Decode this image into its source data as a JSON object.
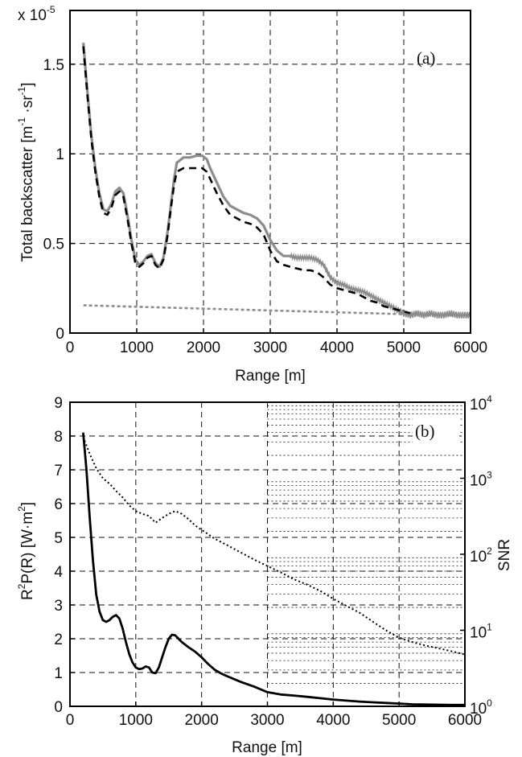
{
  "chart_data": [
    {
      "type": "line",
      "panel_label": "(a)",
      "exponent_label": "x 10",
      "exponent_power": "-5",
      "xlabel": "Range [m]",
      "ylabel": "Total backscatter [m",
      "xlim": [
        0,
        6000
      ],
      "ylim": [
        0,
        1.8
      ],
      "x_ticks": [
        "0",
        "1000",
        "2000",
        "3000",
        "4000",
        "5000",
        "6000"
      ],
      "y_ticks": [
        "0",
        "0.5",
        "1",
        "1.5"
      ],
      "grid": true,
      "series": [
        {
          "style": "solid-gray",
          "color": "#8c8c8c",
          "x": [
            200,
            260,
            320,
            380,
            440,
            500,
            560,
            620,
            680,
            740,
            800,
            860,
            920,
            980,
            1040,
            1100,
            1160,
            1220,
            1280,
            1340,
            1400,
            1460,
            1520,
            1560,
            1600,
            1700,
            1800,
            1900,
            1980,
            2050,
            2100,
            2200,
            2300,
            2400,
            2500,
            2600,
            2700,
            2800,
            2900,
            3000,
            3100,
            3200,
            3300,
            3400,
            3500,
            3600,
            3700,
            3800,
            3900,
            4000,
            4100,
            4200,
            4300,
            4400,
            4500,
            4600,
            4700,
            4800,
            4900,
            5000,
            5100,
            5200,
            5300,
            5400,
            5500,
            5600,
            5700,
            5800,
            5900,
            6000
          ],
          "values": [
            1.62,
            1.35,
            1.1,
            0.92,
            0.78,
            0.69,
            0.68,
            0.72,
            0.79,
            0.81,
            0.78,
            0.66,
            0.52,
            0.41,
            0.38,
            0.4,
            0.43,
            0.44,
            0.39,
            0.37,
            0.42,
            0.56,
            0.74,
            0.86,
            0.95,
            0.98,
            0.98,
            0.99,
            0.99,
            0.97,
            0.92,
            0.84,
            0.76,
            0.71,
            0.69,
            0.67,
            0.66,
            0.64,
            0.6,
            0.52,
            0.46,
            0.43,
            0.43,
            0.42,
            0.42,
            0.42,
            0.41,
            0.38,
            0.31,
            0.28,
            0.27,
            0.25,
            0.24,
            0.23,
            0.21,
            0.19,
            0.17,
            0.15,
            0.13,
            0.11,
            0.1,
            0.11,
            0.1,
            0.11,
            0.1,
            0.1,
            0.11,
            0.1,
            0.1,
            0.1
          ]
        },
        {
          "style": "dashed-black",
          "color": "#000000",
          "x": [
            200,
            260,
            320,
            380,
            440,
            500,
            560,
            620,
            680,
            740,
            800,
            860,
            920,
            980,
            1040,
            1100,
            1160,
            1220,
            1280,
            1340,
            1400,
            1460,
            1520,
            1560,
            1600,
            1700,
            1800,
            1900,
            1980,
            2050,
            2100,
            2200,
            2300,
            2400,
            2500,
            2600,
            2700,
            2800,
            2900,
            3000,
            3100,
            3200,
            3300,
            3400,
            3500,
            3600,
            3700,
            3800,
            3900,
            4000,
            4100,
            4200,
            4300,
            4400,
            4500,
            4600,
            4700,
            4800,
            4900,
            5000,
            5100
          ],
          "values": [
            1.6,
            1.33,
            1.08,
            0.9,
            0.76,
            0.67,
            0.66,
            0.7,
            0.77,
            0.79,
            0.76,
            0.64,
            0.5,
            0.39,
            0.37,
            0.39,
            0.42,
            0.43,
            0.38,
            0.36,
            0.41,
            0.54,
            0.72,
            0.83,
            0.9,
            0.92,
            0.92,
            0.92,
            0.92,
            0.9,
            0.86,
            0.78,
            0.71,
            0.66,
            0.64,
            0.62,
            0.61,
            0.59,
            0.55,
            0.46,
            0.4,
            0.38,
            0.37,
            0.36,
            0.35,
            0.35,
            0.34,
            0.31,
            0.27,
            0.25,
            0.24,
            0.23,
            0.22,
            0.2,
            0.18,
            0.17,
            0.15,
            0.14,
            0.13,
            0.12,
            0.11
          ]
        },
        {
          "style": "dotted-gray",
          "color": "#8c8c8c",
          "x": [
            200,
            6000
          ],
          "values": [
            0.155,
            0.095
          ]
        }
      ]
    },
    {
      "type": "line",
      "panel_label": "(b)",
      "xlabel": "Range [m]",
      "ylabel": "R",
      "ylabel_right": "SNR",
      "xlim": [
        0,
        6000
      ],
      "ylim": [
        0,
        9
      ],
      "ylim_right": [
        1,
        10000
      ],
      "right_scale": "log",
      "x_ticks": [
        "0",
        "1000",
        "2000",
        "3000",
        "4000",
        "5000",
        "6000"
      ],
      "y_ticks": [
        "0",
        "1",
        "2",
        "3",
        "4",
        "5",
        "6",
        "7",
        "8",
        "9"
      ],
      "y_ticks_right": [
        {
          "base": "10",
          "exp": "0"
        },
        {
          "base": "10",
          "exp": "1"
        },
        {
          "base": "10",
          "exp": "2"
        },
        {
          "base": "10",
          "exp": "3"
        },
        {
          "base": "10",
          "exp": "4"
        }
      ],
      "grid": true,
      "series": [
        {
          "style": "solid-black",
          "axis": "left",
          "x": [
            200,
            250,
            300,
            350,
            400,
            450,
            500,
            550,
            600,
            650,
            700,
            750,
            800,
            850,
            900,
            950,
            1000,
            1050,
            1100,
            1150,
            1200,
            1250,
            1300,
            1350,
            1400,
            1450,
            1500,
            1550,
            1600,
            1650,
            1700,
            1800,
            1900,
            2000,
            2100,
            2200,
            2300,
            2400,
            2500,
            2600,
            2700,
            2800,
            2900,
            3000,
            3200,
            3400,
            3600,
            3800,
            4000,
            4200,
            4400,
            4600,
            4800,
            5000,
            5200,
            5500,
            5800,
            6000
          ],
          "values": [
            8.1,
            7.0,
            5.6,
            4.3,
            3.3,
            2.8,
            2.55,
            2.5,
            2.55,
            2.65,
            2.7,
            2.6,
            2.3,
            1.9,
            1.55,
            1.3,
            1.15,
            1.1,
            1.12,
            1.18,
            1.15,
            1.0,
            0.98,
            1.15,
            1.45,
            1.75,
            2.0,
            2.12,
            2.1,
            2.0,
            1.9,
            1.75,
            1.62,
            1.45,
            1.25,
            1.08,
            0.97,
            0.88,
            0.8,
            0.72,
            0.65,
            0.58,
            0.5,
            0.42,
            0.35,
            0.32,
            0.28,
            0.24,
            0.2,
            0.17,
            0.14,
            0.12,
            0.1,
            0.08,
            0.06,
            0.05,
            0.04,
            0.04
          ]
        },
        {
          "style": "dotted-black",
          "axis": "right",
          "x": [
            200,
            300,
            400,
            500,
            600,
            700,
            800,
            900,
            1000,
            1100,
            1200,
            1300,
            1400,
            1500,
            1600,
            1700,
            1800,
            1900,
            2000,
            2200,
            2400,
            2600,
            2800,
            3000,
            3200,
            3400,
            3600,
            3800,
            4000,
            4200,
            4400,
            4600,
            4800,
            5000,
            5200,
            5400,
            5600,
            5800,
            6000
          ],
          "values": [
            3500,
            2100,
            1350,
            1000,
            850,
            680,
            560,
            440,
            370,
            340,
            320,
            260,
            300,
            340,
            370,
            340,
            290,
            240,
            210,
            160,
            130,
            105,
            85,
            70,
            58,
            47,
            40,
            33,
            26,
            21,
            17,
            13,
            10,
            8,
            7,
            6.3,
            5.8,
            5.3,
            4.8
          ]
        }
      ]
    }
  ]
}
